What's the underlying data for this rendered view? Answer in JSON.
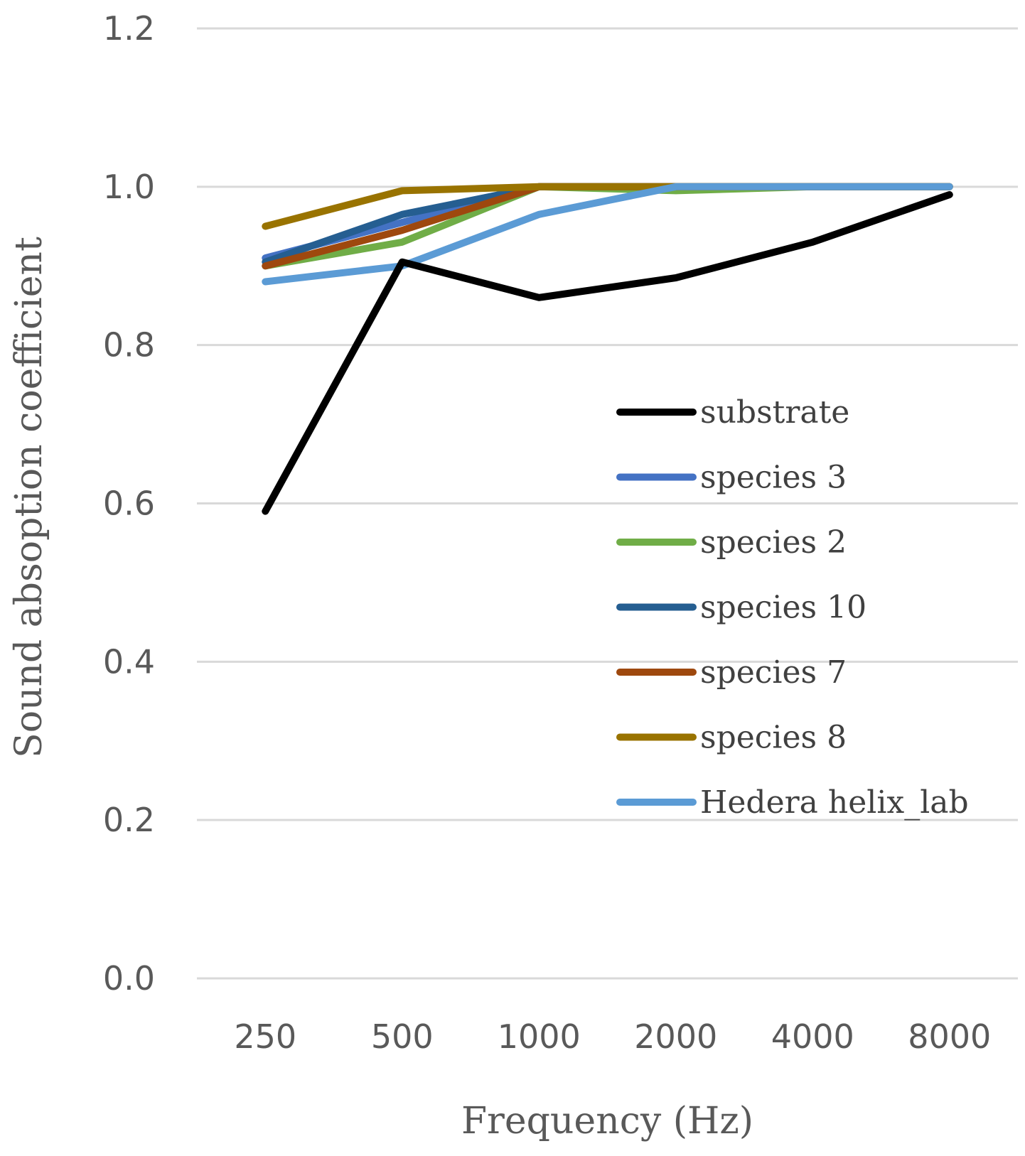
{
  "chart_data": {
    "type": "line",
    "title": "",
    "xlabel": "Frequency (Hz)",
    "ylabel": "Sound absoption coefficient",
    "categories": [
      "250",
      "500",
      "1000",
      "2000",
      "4000",
      "8000"
    ],
    "ylim": [
      0,
      1.2
    ],
    "yticks": [
      "0.0",
      "0.2",
      "0.4",
      "0.6",
      "0.8",
      "1.0",
      "1.2"
    ],
    "grid": true,
    "legend_position": "right-center",
    "series": [
      {
        "name": "substrate",
        "color": "#000000",
        "values": [
          0.59,
          0.905,
          0.86,
          0.885,
          0.93,
          0.99
        ]
      },
      {
        "name": "species 3",
        "color": "#4472c4",
        "values": [
          0.91,
          0.955,
          1.0,
          1.0,
          1.0,
          1.0
        ]
      },
      {
        "name": "species 2",
        "color": "#70ad47",
        "values": [
          0.9,
          0.93,
          1.0,
          0.995,
          1.0,
          1.0
        ]
      },
      {
        "name": "species 10",
        "color": "#255e91",
        "values": [
          0.905,
          0.965,
          1.0,
          1.0,
          1.0,
          1.0
        ]
      },
      {
        "name": "species 7",
        "color": "#9e480e",
        "values": [
          0.9,
          0.945,
          1.0,
          1.0,
          1.0,
          1.0
        ]
      },
      {
        "name": "species 8",
        "color": "#997300",
        "values": [
          0.95,
          0.995,
          1.0,
          1.0,
          1.0,
          1.0
        ]
      },
      {
        "name": "Hedera helix_lab",
        "color": "#5b9bd5",
        "values": [
          0.88,
          0.9,
          0.965,
          1.0,
          1.0,
          1.0
        ]
      }
    ]
  }
}
